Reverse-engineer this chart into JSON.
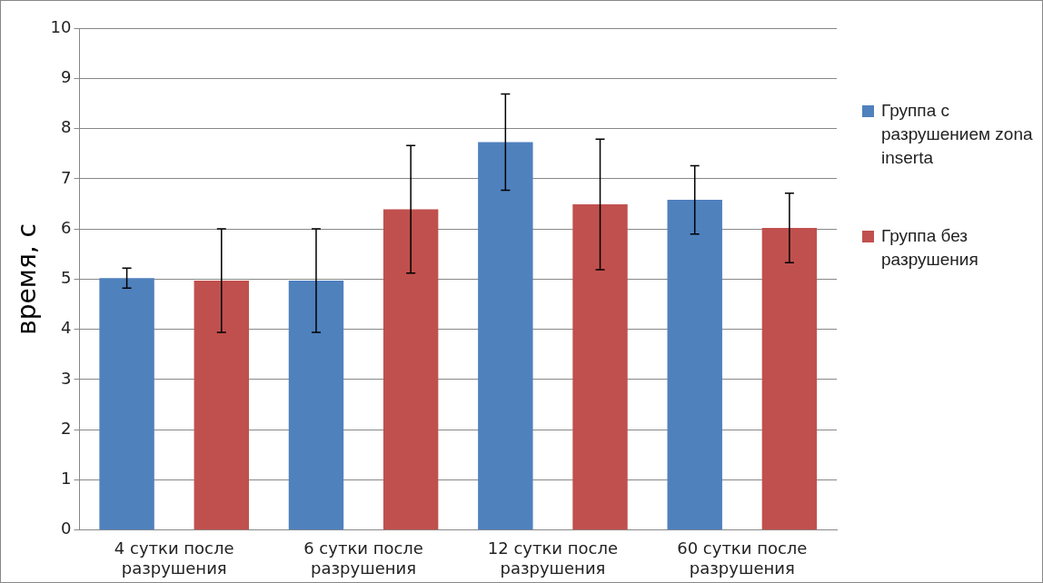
{
  "chart_data": {
    "type": "bar",
    "ylabel": "время, с",
    "categories": [
      "4 сутки после разрушения",
      "6 сутки после разрушения",
      "12 сутки после разрушения",
      "60 сутки после разрушения"
    ],
    "series": [
      {
        "name": "Группа с разрушением zona inserta",
        "color": "#4f81bd",
        "values": [
          5.02,
          4.97,
          7.73,
          6.58
        ],
        "errors": [
          0.2,
          1.03,
          0.96,
          0.68
        ]
      },
      {
        "name": "Группа без разрушения",
        "color": "#c0504d",
        "values": [
          4.97,
          6.39,
          6.49,
          6.02
        ],
        "errors": [
          1.03,
          1.27,
          1.3,
          0.69
        ]
      }
    ],
    "ylim": [
      0,
      10
    ],
    "yticks": [
      0,
      1,
      2,
      3,
      4,
      5,
      6,
      7,
      8,
      9,
      10
    ],
    "grid": "y",
    "legend": "right"
  }
}
